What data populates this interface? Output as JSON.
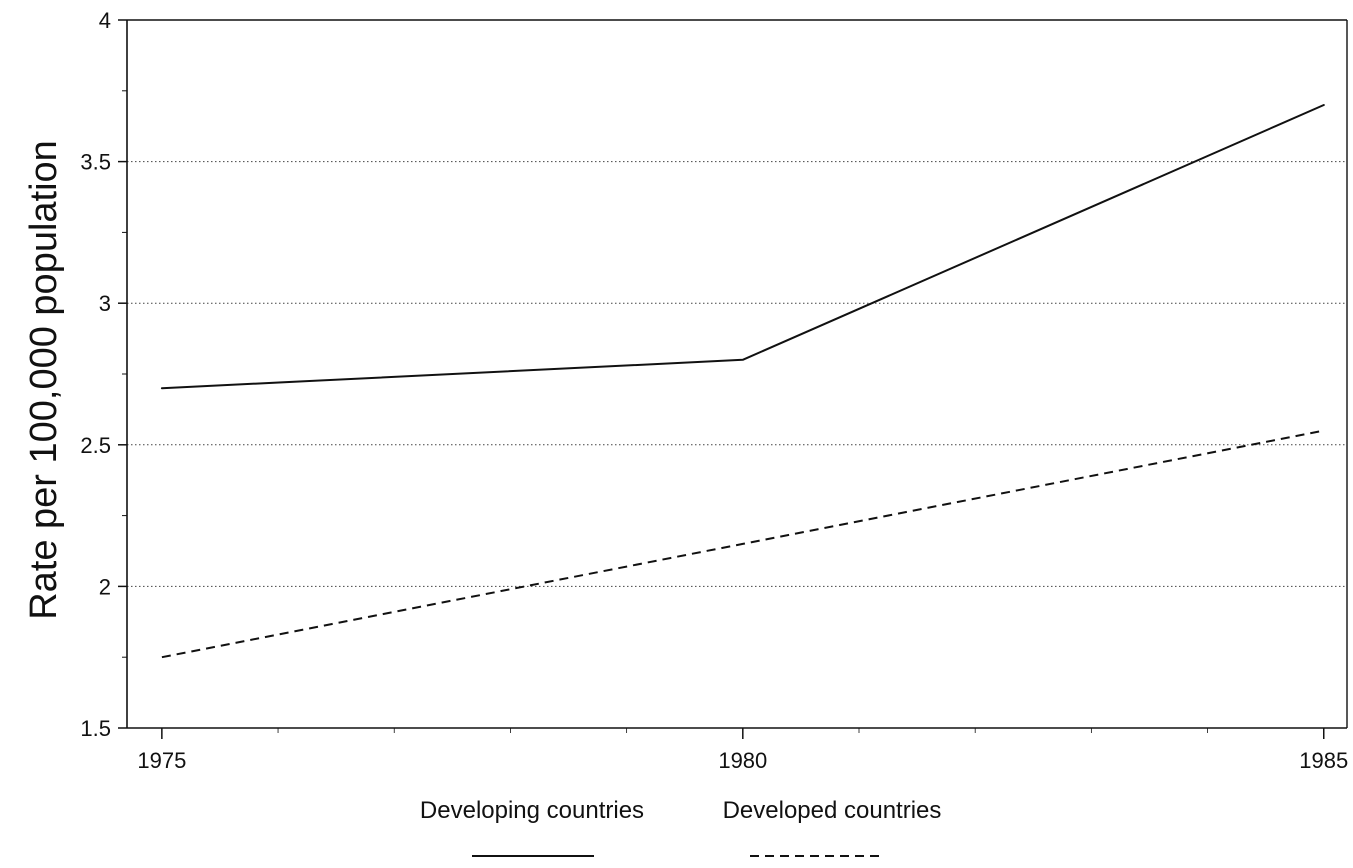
{
  "chart_data": {
    "type": "line",
    "title": "",
    "xlabel": "",
    "ylabel": "Rate per 100,000 population",
    "x": [
      1975,
      1980,
      1985
    ],
    "xlim": [
      1974.7,
      1985.2
    ],
    "ylim": [
      1.5,
      4
    ],
    "x_ticks": [
      "1975",
      "1980",
      "1985"
    ],
    "y_ticks": [
      "1.5",
      "2",
      "2.5",
      "3",
      "3.5",
      "4"
    ],
    "grid": "horizontal dotted",
    "legend_placement": "bottom",
    "series": [
      {
        "name": "Developing countries",
        "values": [
          2.7,
          2.8,
          3.7
        ],
        "style": "solid",
        "color": "#111111"
      },
      {
        "name": "Developed countries",
        "values": [
          1.75,
          2.15,
          2.55
        ],
        "style": "dashed",
        "color": "#111111"
      }
    ]
  }
}
